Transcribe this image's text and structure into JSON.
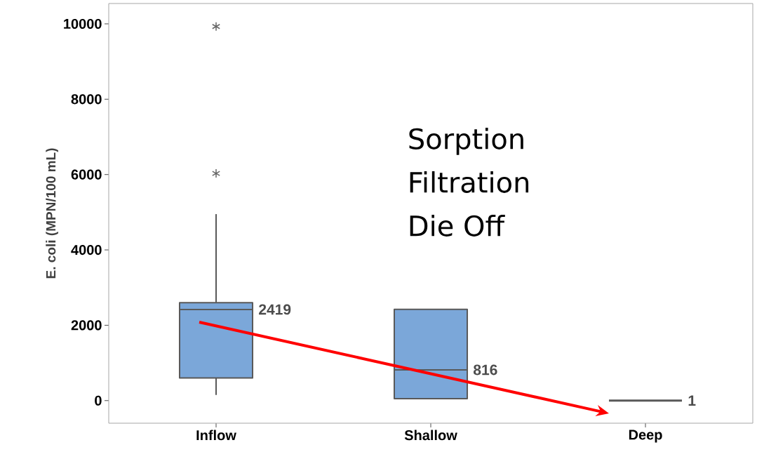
{
  "chart_data": {
    "type": "box",
    "ylabel": "E. coli (MPN/100 mL)",
    "categories": [
      "Inflow",
      "Shallow",
      "Deep"
    ],
    "boxes": [
      {
        "low": 150,
        "q1": 600,
        "median": 2419,
        "q3": 2600,
        "high": 4950,
        "outliers": [
          6030,
          9930
        ]
      },
      {
        "low": 50,
        "q1": 50,
        "median": 816,
        "q3": 2420,
        "high": 2420
      },
      {
        "low": 1,
        "q1": 1,
        "median": 1,
        "q3": 1,
        "high": 1
      }
    ],
    "value_labels": [
      "2419",
      "816",
      "1"
    ],
    "colors": [
      "#7ba7d9",
      "#7ba7d9",
      "#595959"
    ],
    "marker": "star",
    "ylim": [
      -600,
      10540
    ],
    "yticks": [
      0,
      2000,
      4000,
      6000,
      8000,
      10000
    ],
    "grid": false,
    "annotations": [
      "Sorption",
      "Filtration",
      "Die Off"
    ]
  }
}
